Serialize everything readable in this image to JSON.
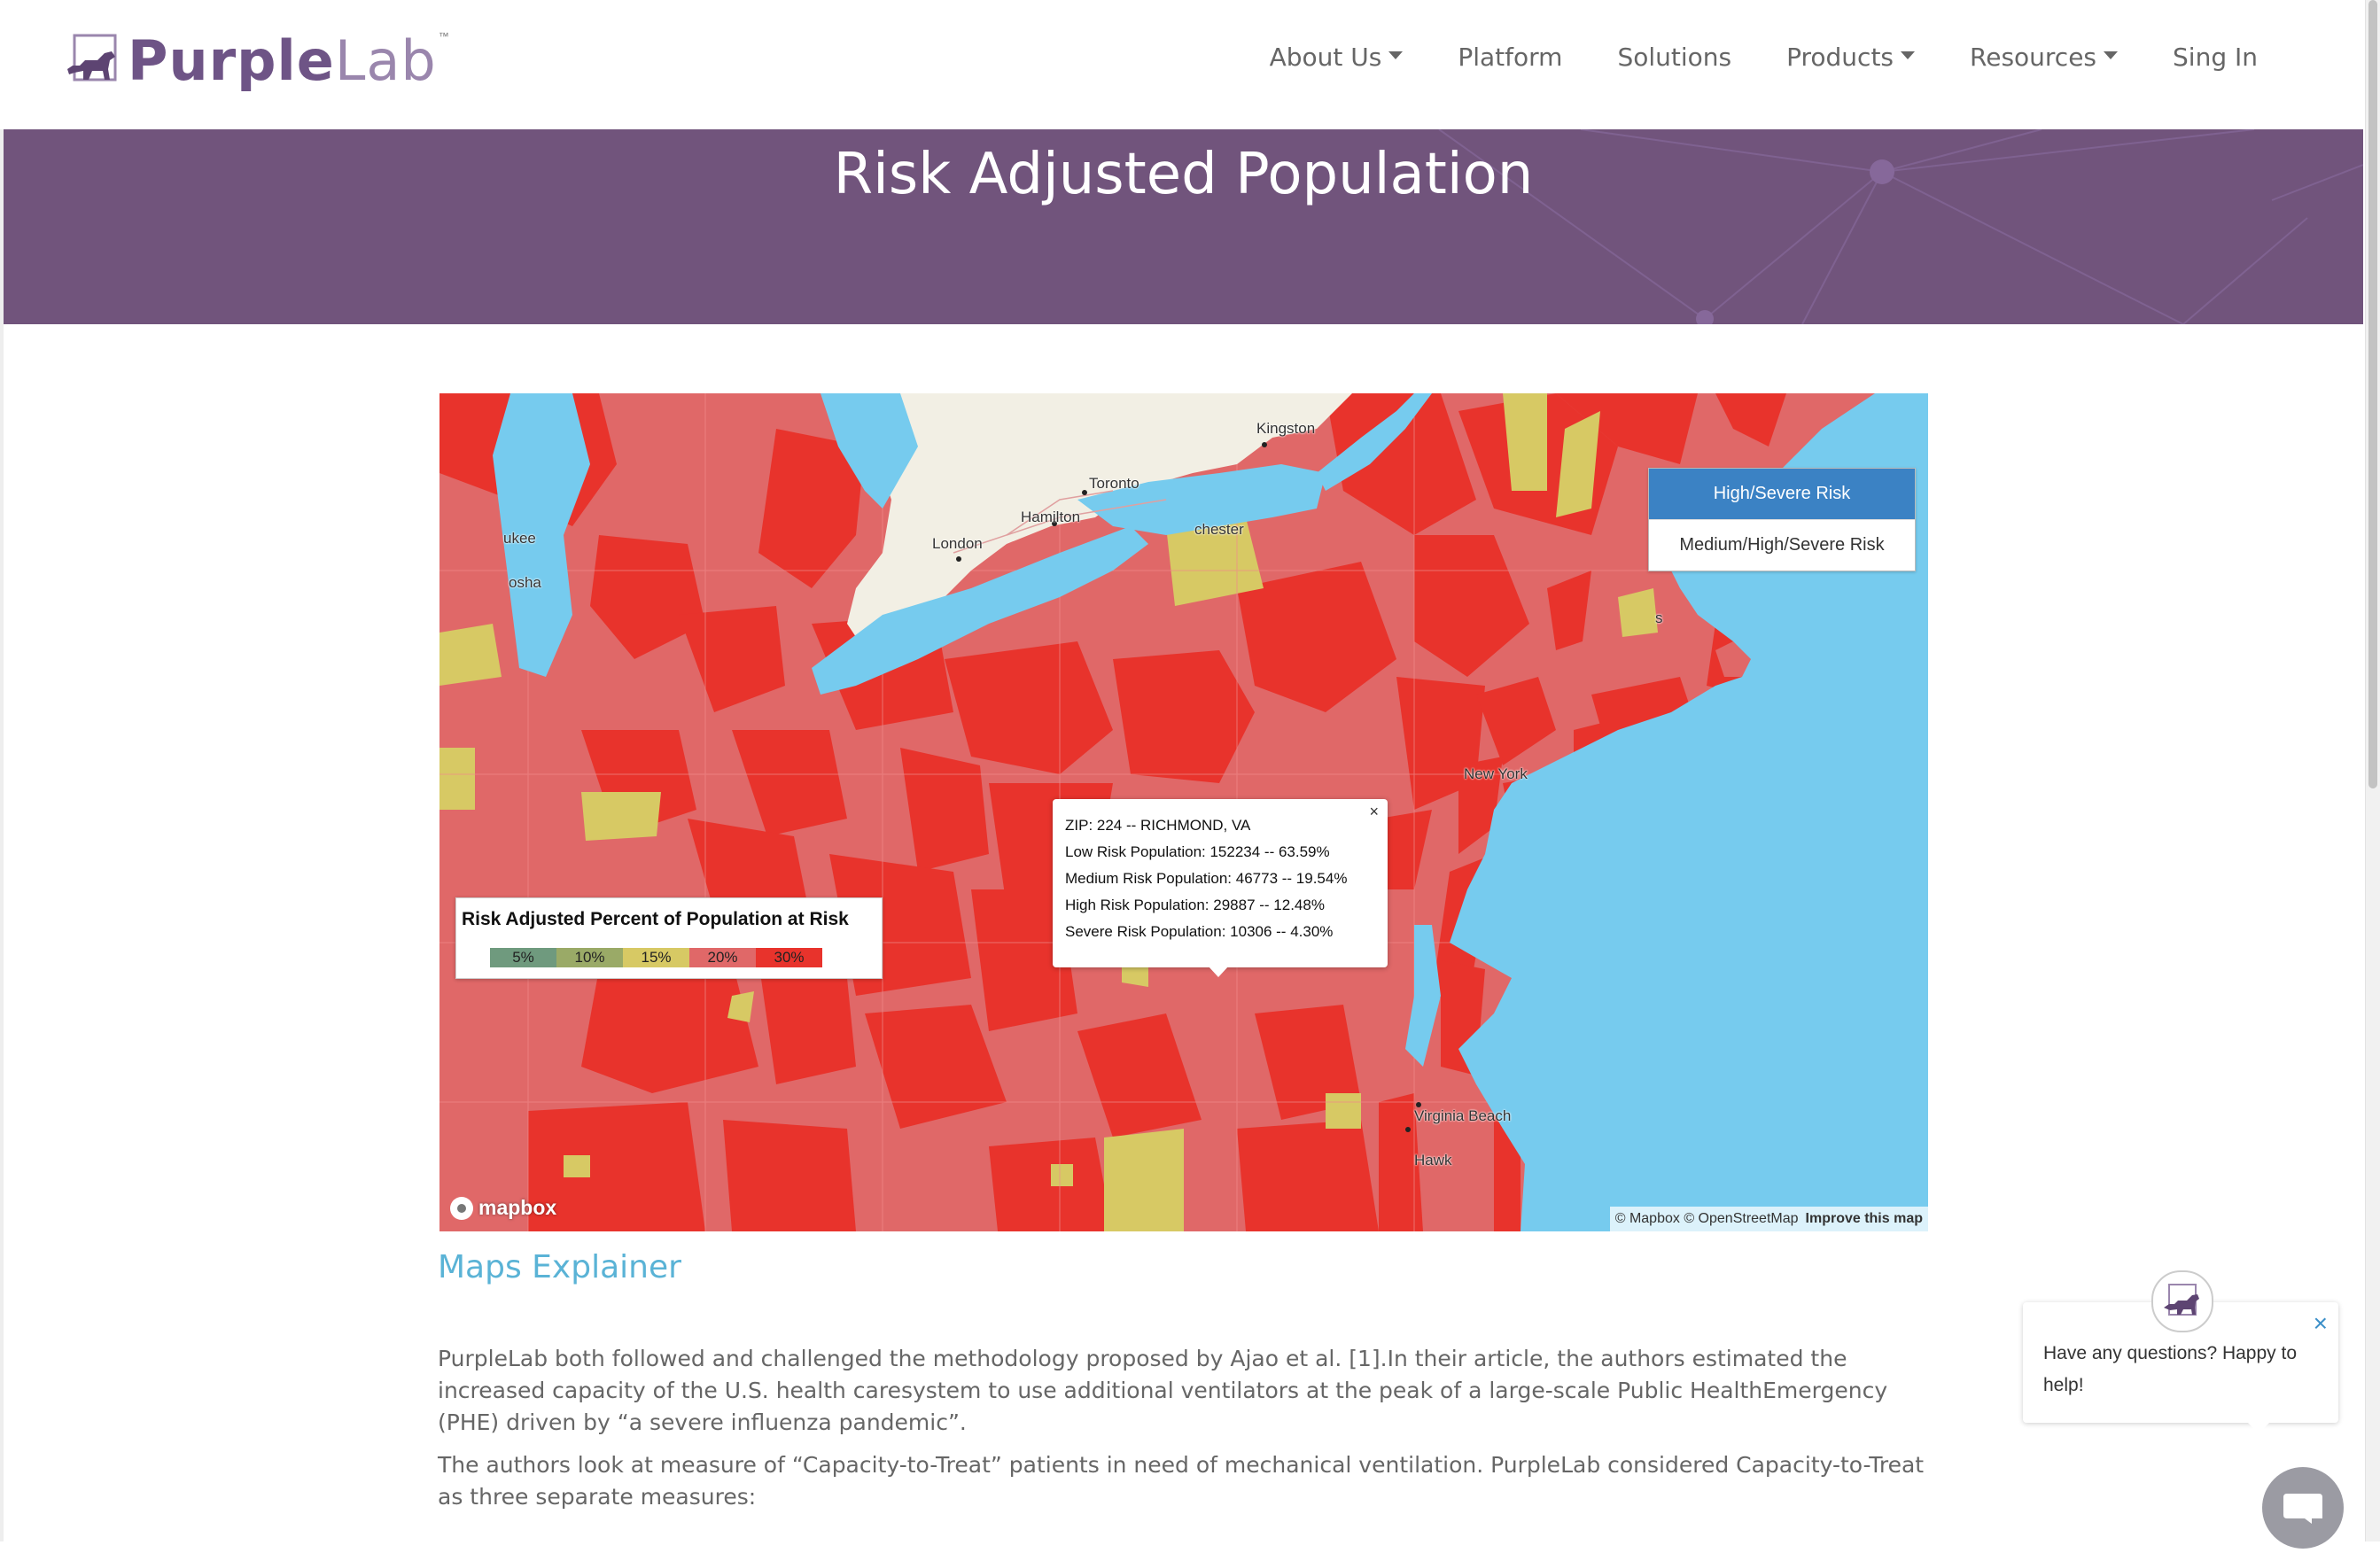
{
  "nav": {
    "logo_purple": "Purple",
    "logo_lab": "Lab",
    "logo_tm": "™",
    "items": [
      {
        "label": "About Us",
        "dropdown": true
      },
      {
        "label": "Platform",
        "dropdown": false
      },
      {
        "label": "Solutions",
        "dropdown": false
      },
      {
        "label": "Products",
        "dropdown": true
      },
      {
        "label": "Resources",
        "dropdown": true
      },
      {
        "label": "Sing In",
        "dropdown": false
      }
    ]
  },
  "hero": {
    "title": "Risk Adjusted Population"
  },
  "map": {
    "toggle": {
      "active": "High/Severe Risk",
      "inactive": "Medium/High/Severe Risk"
    },
    "legend": {
      "title": "Risk Adjusted Percent of Population at Risk",
      "items": [
        {
          "label": "5%",
          "color": "#6f9a7e"
        },
        {
          "label": "10%",
          "color": "#9aaa67"
        },
        {
          "label": "15%",
          "color": "#d7c964"
        },
        {
          "label": "20%",
          "color": "#e06868"
        },
        {
          "label": "30%",
          "color": "#e8332c"
        }
      ]
    },
    "popup": {
      "close": "×",
      "lines": [
        "ZIP: 224 -- RICHMOND, VA",
        "Low Risk Population: 152234 -- 63.59%",
        "Medium Risk Population: 46773 -- 19.54%",
        "High Risk Population: 29887 -- 12.48%",
        "Severe Risk Population: 10306 -- 4.30%"
      ]
    },
    "places": {
      "kingston": "Kingston",
      "toronto": "Toronto",
      "hamilton": "Hamilton",
      "london": "London",
      "milwaukee": "ukee",
      "kenosha": "osha",
      "rochester": "chester",
      "newyork": "New York",
      "boston": "s",
      "virginiabeach": "Virginia Beach",
      "killdevilhills": "Hawk"
    },
    "mapbox_logo": "mapbox",
    "attribution": "© Mapbox © OpenStreetMap",
    "improve": "Improve this map",
    "colors": {
      "water": "#76cbee",
      "land": "#f2efe4",
      "high": "#e8332c",
      "medium": "#e06868",
      "low": "#d7c964"
    }
  },
  "explainer": {
    "title": "Maps Explainer",
    "para1": "PurpleLab both followed and challenged the methodology proposed by Ajao et al. [1].In their article, the authors estimated the increased capacity of the U.S. health caresystem to use additional ventilators at the peak of a large-scale Public HealthEmergency (PHE) driven by “a severe influenza pandemic”.",
    "para2": "The authors look at measure of “Capacity-to-Treat” patients in need of mechanical ventilation. PurpleLab considered Capacity-to-Treat as three separate measures:"
  },
  "chat": {
    "close": "×",
    "message": "Have any questions? Happy to help!"
  }
}
